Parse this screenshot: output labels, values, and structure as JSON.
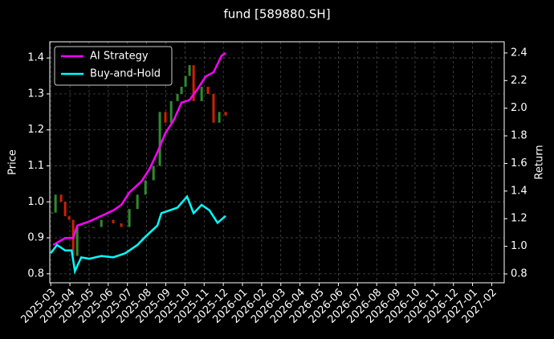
{
  "chart_data": {
    "type": "line",
    "title": "fund [589880.SH]",
    "y_label": "Price",
    "y2_label": "Return",
    "xlim": [
      -0.05,
      23.65
    ],
    "xticks": [
      {
        "value": 0,
        "label": "2025-03"
      },
      {
        "value": 1,
        "label": "2025-04"
      },
      {
        "value": 2,
        "label": "2025-05"
      },
      {
        "value": 3,
        "label": "2025-06"
      },
      {
        "value": 4,
        "label": "2025-07"
      },
      {
        "value": 5,
        "label": "2025-08"
      },
      {
        "value": 6,
        "label": "2025-09"
      },
      {
        "value": 7,
        "label": "2025-10"
      },
      {
        "value": 8,
        "label": "2025-11"
      },
      {
        "value": 9,
        "label": "2025-12"
      },
      {
        "value": 10,
        "label": "2026-01"
      },
      {
        "value": 11,
        "label": "2026-02"
      },
      {
        "value": 12,
        "label": "2026-03"
      },
      {
        "value": 13,
        "label": "2026-04"
      },
      {
        "value": 14,
        "label": "2026-05"
      },
      {
        "value": 15,
        "label": "2026-06"
      },
      {
        "value": 16,
        "label": "2026-07"
      },
      {
        "value": 17,
        "label": "2026-08"
      },
      {
        "value": 18,
        "label": "2026-09"
      },
      {
        "value": 19,
        "label": "2026-10"
      },
      {
        "value": 20,
        "label": "2026-11"
      },
      {
        "value": 21,
        "label": "2026-12"
      },
      {
        "value": 22,
        "label": "2027-01"
      },
      {
        "value": 23,
        "label": "2027-02"
      }
    ],
    "ylim": [
      0.775,
      1.445
    ],
    "yticks": [
      0.8,
      0.9,
      {
        "value": 1,
        "label": "1.0"
      },
      1.1,
      1.2,
      1.3,
      1.4
    ],
    "y2lim": [
      0.736,
      2.481
    ],
    "y2ticks": [
      0.8,
      {
        "value": 1,
        "label": "1.0"
      },
      1.2,
      1.4,
      1.6,
      1.8,
      {
        "value": 2,
        "label": "2.0"
      },
      2.2,
      2.4
    ],
    "grid": true,
    "legend": "upper left",
    "price": {
      "up_color": "#2e8b2e",
      "down_color": "#cc2200",
      "x": [
        0.08,
        0.25,
        0.54,
        0.75,
        0.96,
        1.17,
        1.38,
        1.8,
        2.22,
        2.64,
        3.26,
        3.68,
        4.1,
        4.52,
        4.94,
        5.36,
        5.69,
        5.98,
        6.28,
        6.61,
        6.82,
        7.03,
        7.24,
        7.45,
        7.87,
        8.2,
        8.49,
        8.79,
        9.12
      ],
      "values": [
        0.97,
        1.02,
        1.0,
        0.96,
        0.95,
        0.85,
        0.93,
        0.93,
        0.93,
        0.95,
        0.94,
        0.93,
        0.98,
        1.02,
        1.06,
        1.1,
        1.25,
        1.22,
        1.28,
        1.3,
        1.32,
        1.35,
        1.38,
        1.28,
        1.32,
        1.3,
        1.22,
        1.25,
        1.24
      ]
    },
    "series": [
      {
        "name": "AI Strategy",
        "color": "#ff00ff",
        "axis": "y2",
        "x": [
          0.13,
          0.75,
          1.17,
          1.38,
          2.01,
          2.64,
          3.26,
          3.68,
          4.1,
          4.73,
          5.15,
          5.56,
          5.98,
          6.4,
          6.82,
          7.24,
          7.66,
          8.08,
          8.49,
          8.91,
          9.12
        ],
        "values": [
          1.01,
          1.06,
          1.06,
          1.15,
          1.18,
          1.22,
          1.26,
          1.3,
          1.39,
          1.47,
          1.56,
          1.68,
          1.82,
          1.91,
          2.04,
          2.06,
          2.14,
          2.23,
          2.26,
          2.38,
          2.4
        ]
      },
      {
        "name": "Buy-and-Hold",
        "color": "#00ffff",
        "axis": "y2",
        "x": [
          0,
          0.33,
          0.75,
          1.09,
          1.26,
          1.59,
          2.01,
          2.64,
          3.26,
          3.89,
          4.52,
          4.94,
          5.56,
          5.77,
          6.19,
          6.61,
          7.11,
          7.45,
          7.87,
          8.28,
          8.7,
          9.12
        ],
        "values": [
          0.95,
          1.01,
          0.97,
          0.97,
          0.82,
          0.92,
          0.91,
          0.93,
          0.92,
          0.95,
          1.01,
          1.07,
          1.15,
          1.24,
          1.26,
          1.28,
          1.36,
          1.24,
          1.3,
          1.26,
          1.17,
          1.22
        ]
      }
    ]
  }
}
